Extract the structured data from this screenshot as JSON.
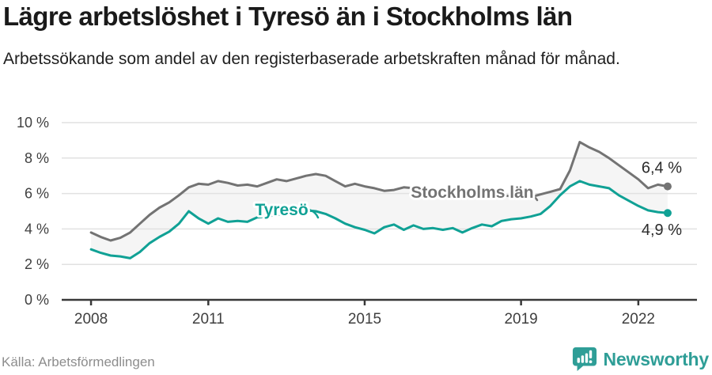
{
  "header": {
    "title": "Lägre arbetslöshet i Tyresö än i Stockholms län",
    "subtitle": "Arbetssökande som andel av den registerbaserade arbetskraften månad för månad."
  },
  "footer": {
    "source": "Källa: Arbetsförmedlingen",
    "brand": "Newsworthy"
  },
  "colors": {
    "stockholm": "#737373",
    "tyreso": "#10a195",
    "band": "#f5f5f5",
    "grid": "#e1e1e1",
    "axis": "#383838",
    "brand": "#2f9e97"
  },
  "chart_data": {
    "type": "line",
    "title": "Lägre arbetslöshet i Tyresö än i Stockholms län",
    "xlabel": "",
    "ylabel": "",
    "xlim": [
      2007.25,
      2023.5
    ],
    "ylim": [
      0,
      10
    ],
    "grid": true,
    "legend_position": "inline-labels",
    "x_ticks": [
      2008,
      2011,
      2015,
      2019,
      2022
    ],
    "y_ticks": [
      0,
      2,
      4,
      6,
      8,
      10
    ],
    "y_tick_suffix": " %",
    "x": [
      2008,
      2008.25,
      2008.5,
      2008.75,
      2009,
      2009.25,
      2009.5,
      2009.75,
      2010,
      2010.25,
      2010.5,
      2010.75,
      2011,
      2011.25,
      2011.5,
      2011.75,
      2012,
      2012.25,
      2012.5,
      2012.75,
      2013,
      2013.25,
      2013.5,
      2013.75,
      2014,
      2014.25,
      2014.5,
      2014.75,
      2015,
      2015.25,
      2015.5,
      2015.75,
      2016,
      2016.25,
      2016.5,
      2016.75,
      2017,
      2017.25,
      2017.5,
      2017.75,
      2018,
      2018.25,
      2018.5,
      2018.75,
      2019,
      2019.25,
      2019.5,
      2019.75,
      2020,
      2020.25,
      2020.5,
      2020.75,
      2021,
      2021.25,
      2021.5,
      2021.75,
      2022,
      2022.25,
      2022.5,
      2022.75
    ],
    "series": [
      {
        "id": "stockholm",
        "name": "Stockholms län",
        "end_label": "6,4 %",
        "end_value": 6.4,
        "values": [
          3.8,
          3.55,
          3.35,
          3.5,
          3.8,
          4.3,
          4.8,
          5.2,
          5.5,
          5.9,
          6.35,
          6.55,
          6.5,
          6.7,
          6.6,
          6.45,
          6.5,
          6.4,
          6.6,
          6.8,
          6.7,
          6.85,
          7.0,
          7.1,
          7.0,
          6.7,
          6.4,
          6.55,
          6.4,
          6.3,
          6.15,
          6.2,
          6.35,
          6.3,
          6.25,
          6.2,
          6.15,
          6.1,
          6.05,
          6.0,
          5.95,
          5.9,
          5.9,
          5.85,
          5.85,
          5.8,
          5.95,
          6.1,
          6.25,
          7.3,
          8.9,
          8.6,
          8.35,
          8.0,
          7.6,
          7.2,
          6.8,
          6.3,
          6.5,
          6.4
        ]
      },
      {
        "id": "tyreso",
        "name": "Tyresö",
        "end_label": "4,9 %",
        "end_value": 4.9,
        "values": [
          2.85,
          2.65,
          2.5,
          2.45,
          2.35,
          2.7,
          3.2,
          3.55,
          3.85,
          4.3,
          5.0,
          4.6,
          4.3,
          4.6,
          4.4,
          4.45,
          4.4,
          4.65,
          4.7,
          4.8,
          4.85,
          4.95,
          5.05,
          5.0,
          4.85,
          4.6,
          4.3,
          4.1,
          3.95,
          3.75,
          4.1,
          4.25,
          3.95,
          4.2,
          4.0,
          4.05,
          3.95,
          4.05,
          3.8,
          4.05,
          4.25,
          4.15,
          4.45,
          4.55,
          4.6,
          4.7,
          4.85,
          5.3,
          5.9,
          6.4,
          6.7,
          6.5,
          6.4,
          6.3,
          5.9,
          5.6,
          5.3,
          5.05,
          4.95,
          4.9
        ]
      }
    ]
  }
}
